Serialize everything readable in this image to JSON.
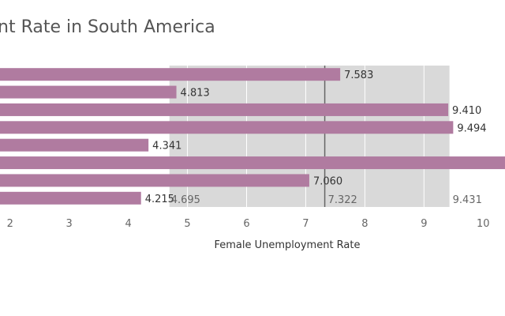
{
  "chart_data": {
    "type": "bar",
    "orientation": "horizontal",
    "title": "nt Rate in South America",
    "xlabel": "Female Unemployment Rate",
    "ylabel": "",
    "values": [
      7.583,
      4.813,
      9.41,
      9.494,
      4.341,
      10.5,
      7.06,
      4.215
    ],
    "value_labels": [
      "7.583",
      "4.813",
      "9.410",
      "9.494",
      "4.341",
      "",
      "7.060",
      "4.215"
    ],
    "x_ticks": [
      "2",
      "3",
      "4",
      "5",
      "6",
      "7",
      "8",
      "9",
      "10"
    ],
    "xlim": [
      1.83,
      10.37
    ],
    "reference_band": {
      "from": 4.695,
      "to": 9.431,
      "from_label": "4.695",
      "to_label": "9.431"
    },
    "reference_line": {
      "value": 7.322,
      "label": "7.322"
    },
    "grid": true,
    "colors": {
      "bar": "#b07ba0",
      "band": "#d9d9d9",
      "ref_line": "#666666",
      "grid": "#ffffff"
    }
  }
}
